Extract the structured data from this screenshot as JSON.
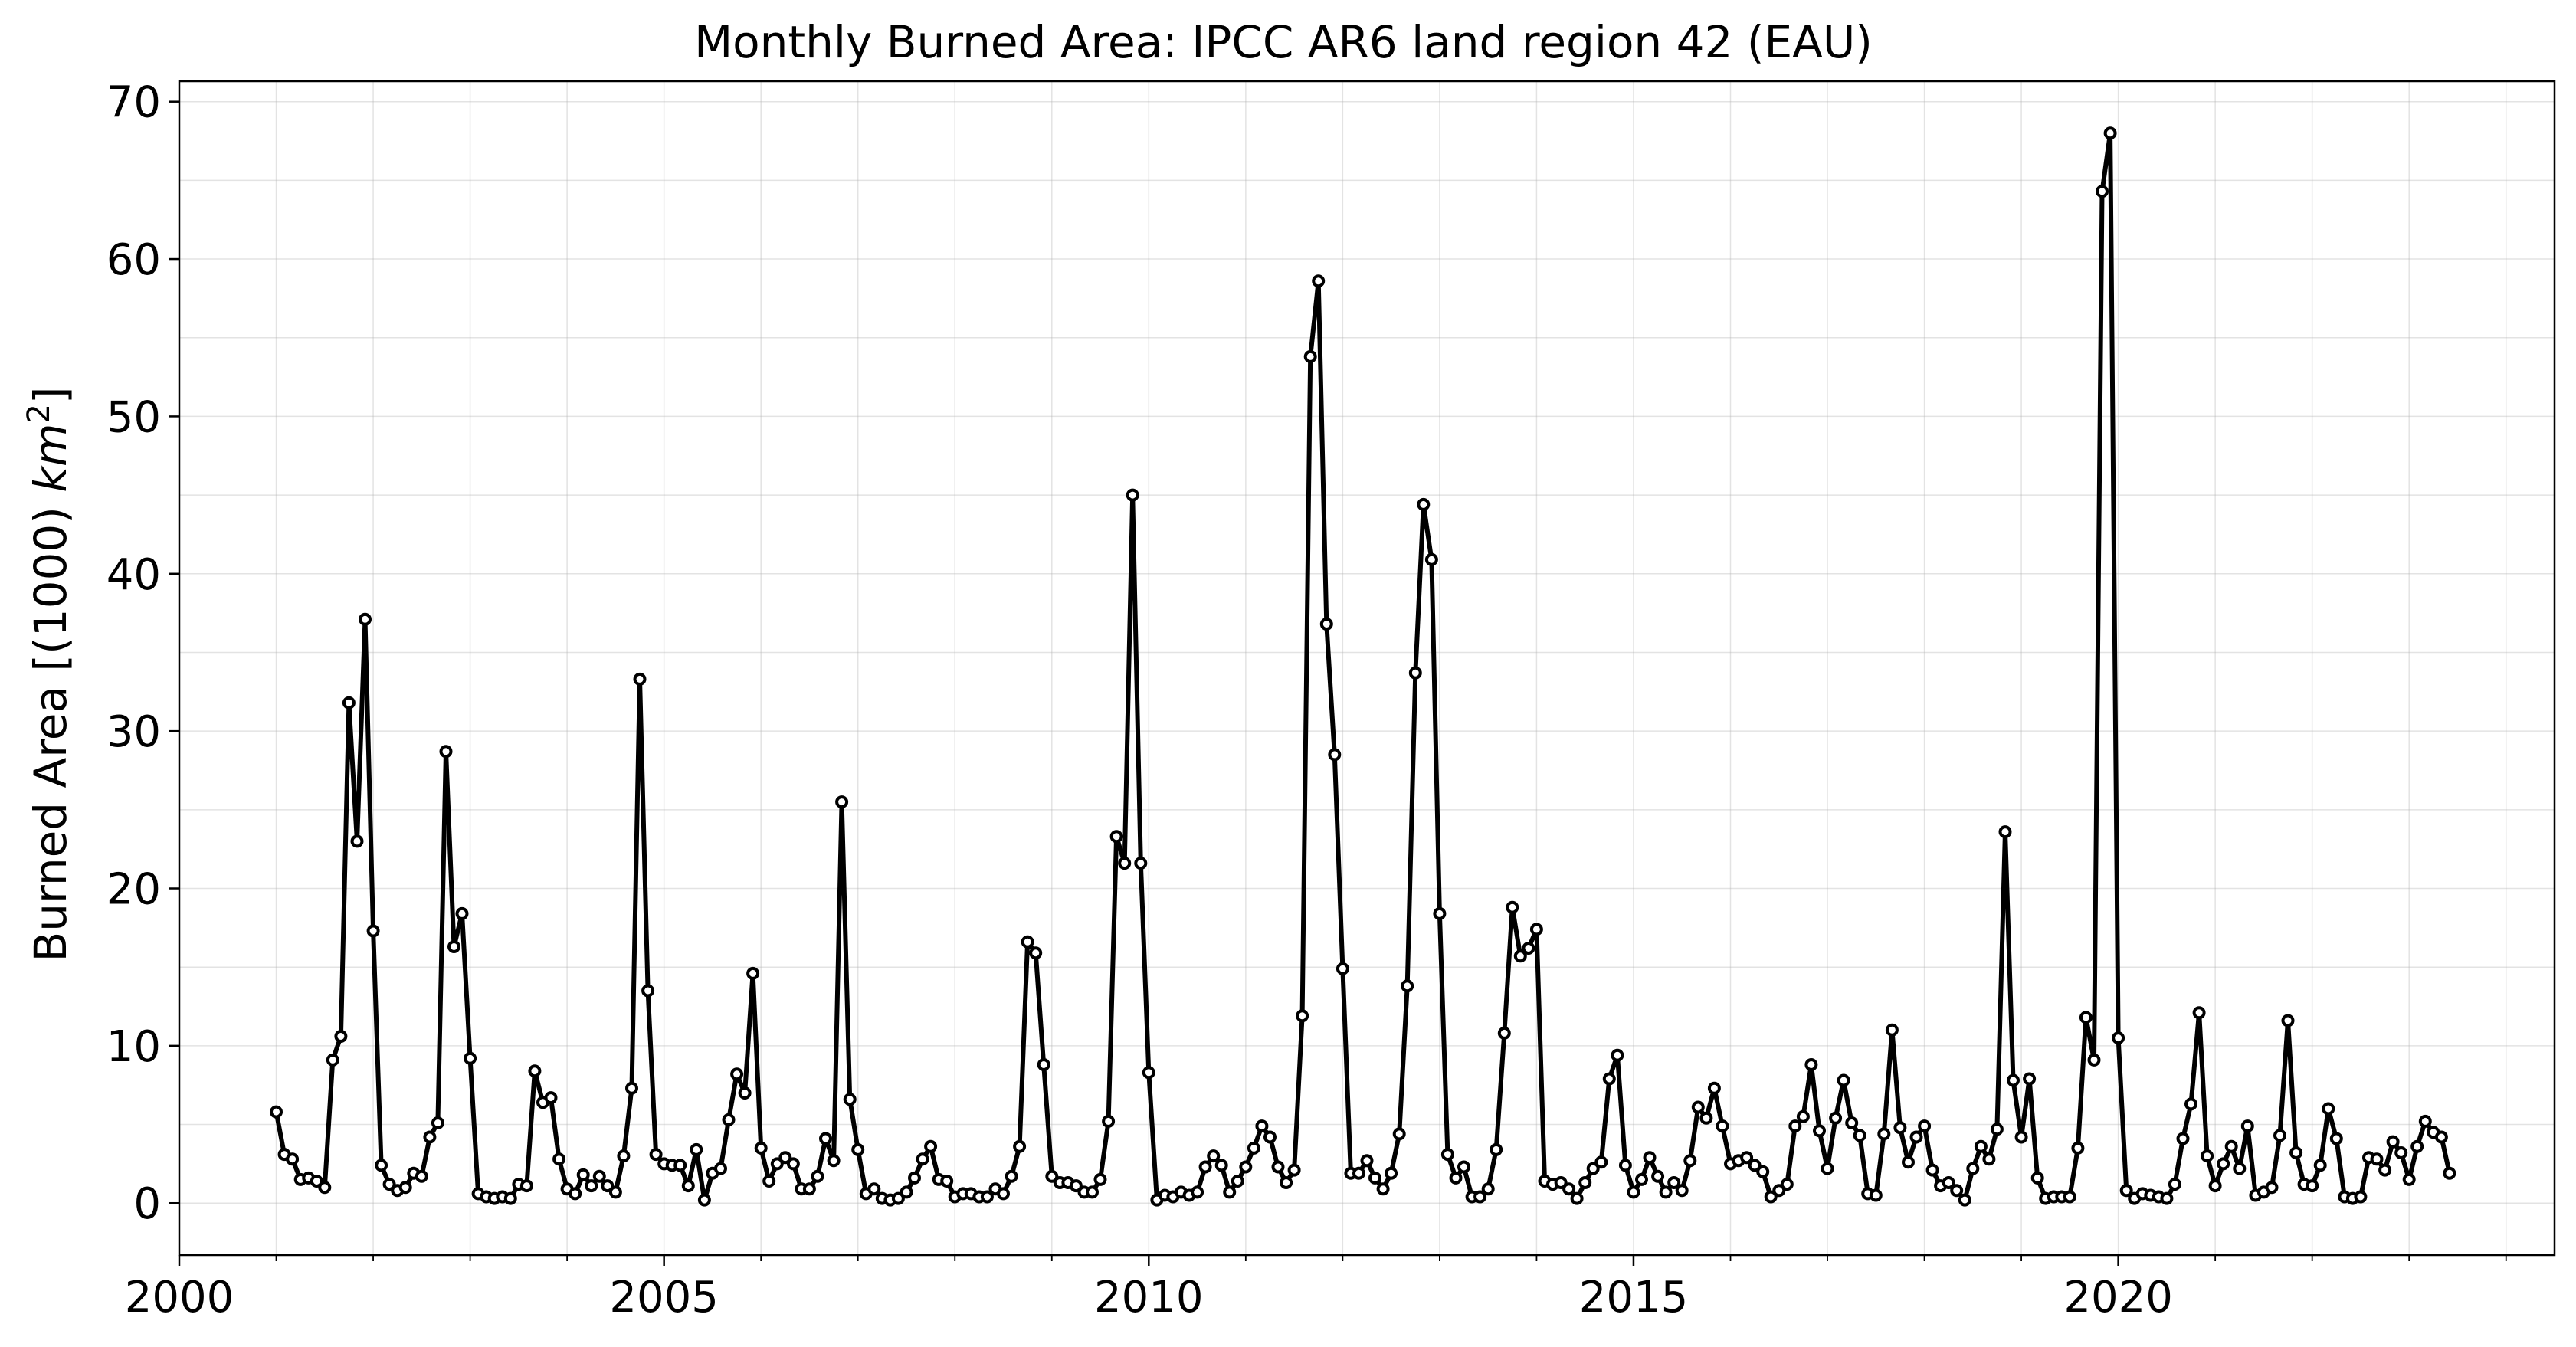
{
  "chart_data": {
    "type": "line",
    "title": "Monthly Burned Area: IPCC AR6 land region 42 (EAU)",
    "ylabel_prefix": "Burned Area [(1000) ",
    "ylabel_unit": "km",
    "ylabel_sup": "2",
    "ylabel_suffix": "]",
    "xlabel": "",
    "xlim": [
      2000.0,
      2024.5
    ],
    "ylim": [
      -3.3,
      71.3
    ],
    "xticks": [
      2000,
      2005,
      2010,
      2015,
      2020
    ],
    "xtick_labels": [
      "2000",
      "2005",
      "2010",
      "2015",
      "2020"
    ],
    "yticks": [
      0,
      10,
      20,
      30,
      40,
      50,
      60,
      70
    ],
    "ytick_labels": [
      "0",
      "10",
      "20",
      "30",
      "40",
      "50",
      "60",
      "70"
    ],
    "grid": true,
    "line_color": "#000000",
    "marker_fill": "#ffffff",
    "series": [
      {
        "start_year": 2001,
        "start_month": 1,
        "values": [
          5.8,
          3.1,
          2.8,
          1.5,
          1.6,
          1.4,
          1.0,
          9.1,
          10.6,
          31.8,
          23.0,
          37.1,
          17.3,
          2.4,
          1.2,
          0.8,
          1.0,
          1.9,
          1.7,
          4.2,
          5.1,
          28.7,
          16.3,
          18.4,
          9.2,
          0.6,
          0.4,
          0.3,
          0.4,
          0.3,
          1.2,
          1.1,
          8.4,
          6.4,
          6.7,
          2.8,
          0.9,
          0.6,
          1.8,
          1.1,
          1.7,
          1.1,
          0.7,
          3.0,
          7.3,
          33.3,
          13.5,
          3.1,
          2.5,
          2.4,
          2.4,
          1.1,
          3.4,
          0.2,
          1.9,
          2.2,
          5.3,
          8.2,
          7.0,
          14.6,
          3.5,
          1.4,
          2.5,
          2.9,
          2.5,
          0.9,
          0.9,
          1.7,
          4.1,
          2.7,
          25.5,
          6.6,
          3.4,
          0.6,
          0.9,
          0.3,
          0.2,
          0.3,
          0.7,
          1.6,
          2.8,
          3.6,
          1.5,
          1.4,
          0.4,
          0.6,
          0.6,
          0.4,
          0.4,
          0.9,
          0.6,
          1.7,
          3.6,
          16.6,
          15.9,
          8.8,
          1.7,
          1.3,
          1.3,
          1.1,
          0.7,
          0.7,
          1.5,
          5.2,
          23.3,
          21.6,
          45.0,
          21.6,
          8.3,
          0.2,
          0.5,
          0.4,
          0.7,
          0.5,
          0.7,
          2.3,
          3.0,
          2.4,
          0.7,
          1.4,
          2.3,
          3.5,
          4.9,
          4.2,
          2.3,
          1.3,
          2.1,
          11.9,
          53.8,
          58.6,
          36.8,
          28.5,
          14.9,
          1.9,
          1.9,
          2.7,
          1.6,
          0.9,
          1.9,
          4.4,
          13.8,
          33.7,
          44.4,
          40.9,
          18.4,
          3.1,
          1.6,
          2.3,
          0.4,
          0.4,
          0.9,
          3.4,
          10.8,
          18.8,
          15.7,
          16.2,
          17.4,
          1.4,
          1.2,
          1.3,
          0.9,
          0.3,
          1.3,
          2.2,
          2.6,
          7.9,
          9.4,
          2.4,
          0.7,
          1.5,
          2.9,
          1.7,
          0.7,
          1.3,
          0.8,
          2.7,
          6.1,
          5.4,
          7.3,
          4.9,
          2.5,
          2.7,
          2.9,
          2.4,
          2.0,
          0.4,
          0.8,
          1.2,
          4.9,
          5.5,
          8.8,
          4.6,
          2.2,
          5.4,
          7.8,
          5.1,
          4.3,
          0.6,
          0.5,
          4.4,
          11.0,
          4.8,
          2.6,
          4.2,
          4.9,
          2.1,
          1.1,
          1.3,
          0.8,
          0.2,
          2.2,
          3.6,
          2.8,
          4.7,
          23.6,
          7.8,
          4.2,
          7.9,
          1.6,
          0.3,
          0.4,
          0.4,
          0.4,
          3.5,
          11.8,
          9.1,
          64.3,
          68.0,
          10.5,
          0.8,
          0.3,
          0.6,
          0.5,
          0.4,
          0.3,
          1.2,
          4.1,
          6.3,
          12.1,
          3.0,
          1.1,
          2.5,
          3.6,
          2.2,
          4.9,
          0.5,
          0.7,
          1.0,
          4.3,
          11.6,
          3.2,
          1.2,
          1.1,
          2.4,
          6.0,
          4.1,
          0.4,
          0.3,
          0.4,
          2.9,
          2.8,
          2.1,
          3.9,
          3.2,
          1.5,
          3.6,
          5.2,
          4.5,
          4.2,
          1.9
        ]
      }
    ]
  }
}
